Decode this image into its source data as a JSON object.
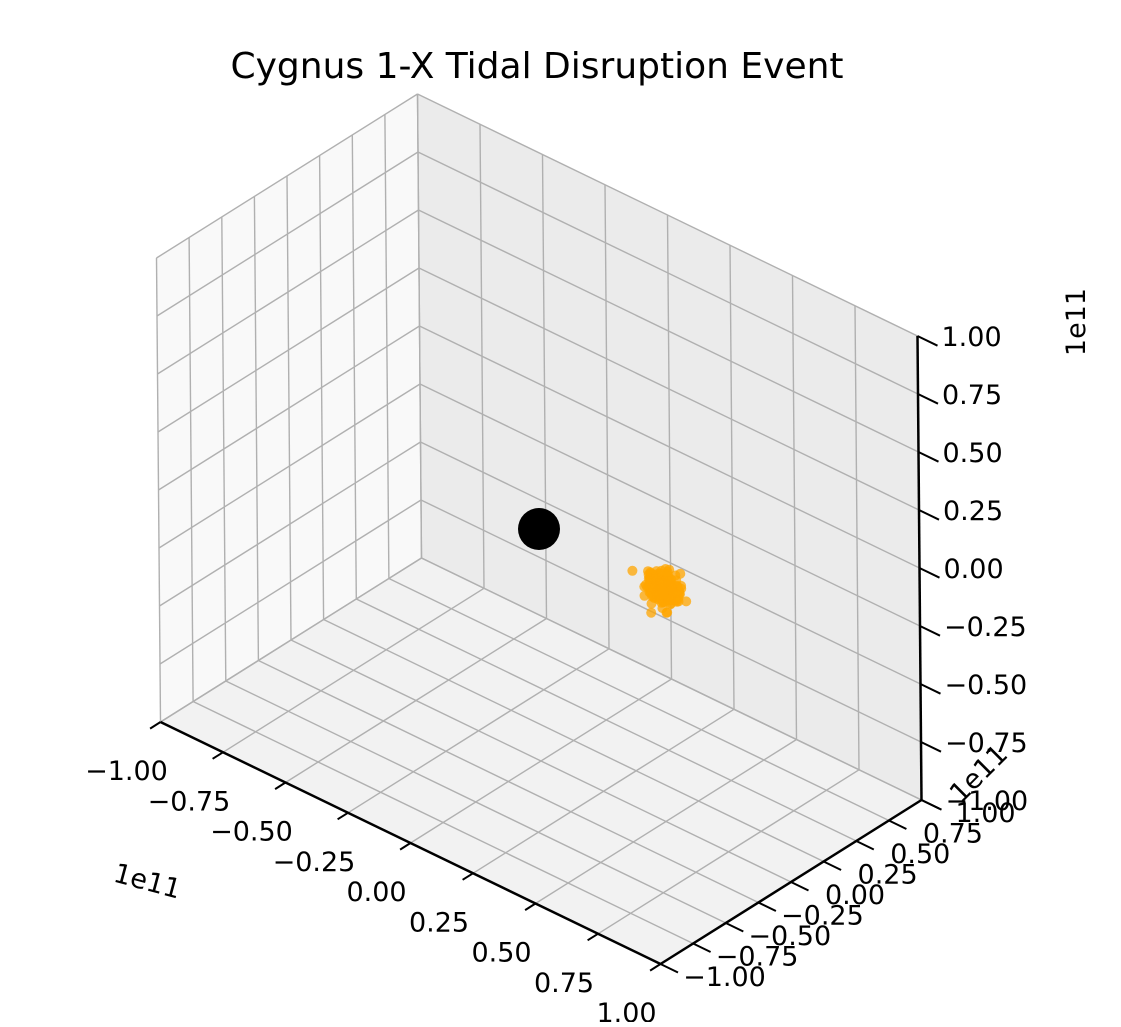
{
  "chart_data": {
    "type": "scatter3d",
    "title": "Cygnus 1-X Tidal Disruption Event",
    "xlim": [
      -100000000000,
      100000000000
    ],
    "ylim": [
      -100000000000,
      100000000000
    ],
    "zlim": [
      -100000000000,
      100000000000
    ],
    "x_offset_label": "1e11",
    "y_offset_label": "1e11",
    "z_offset_label": "1e11",
    "x_tick_labels": [
      "−1.00",
      "−0.75",
      "−0.50",
      "−0.25",
      "0.00",
      "0.25",
      "0.50",
      "0.75",
      "1.00"
    ],
    "y_tick_labels": [
      "−1.00",
      "−0.75",
      "−0.50",
      "−0.25",
      "0.00",
      "0.25",
      "0.50",
      "0.75",
      "1.00"
    ],
    "z_tick_labels": [
      "−1.00",
      "−0.75",
      "−0.50",
      "−0.25",
      "0.00",
      "0.25",
      "0.50",
      "0.75",
      "1.00"
    ],
    "grid": true,
    "series": [
      {
        "marker": "black-hole",
        "color": "#000000",
        "points": [
          [
            0,
            0,
            0
          ]
        ]
      },
      {
        "marker": "star-debris",
        "color": "#ffa500",
        "center": [
          50000000000,
          0,
          0
        ],
        "spread": 3000000000,
        "count": 220
      }
    ]
  }
}
